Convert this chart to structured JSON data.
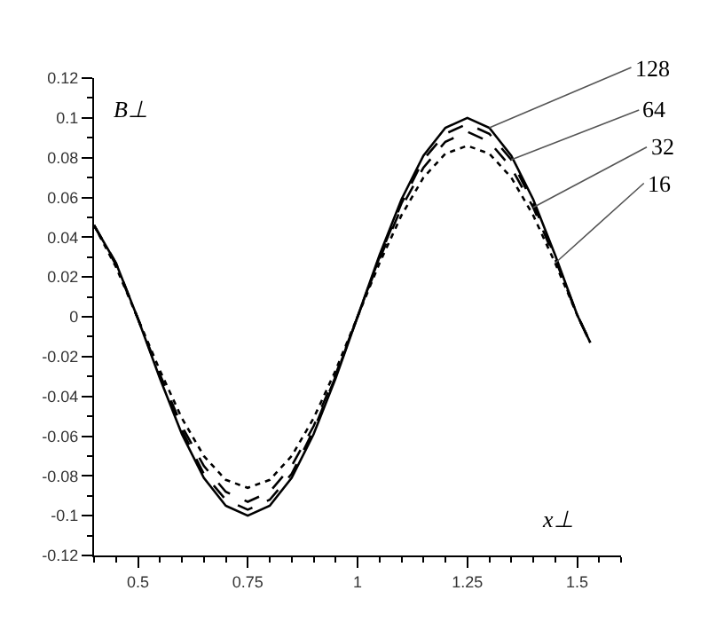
{
  "chart_data": {
    "type": "line",
    "xlabel": "x⊥",
    "ylabel": "B⊥",
    "x": [
      0.4,
      0.45,
      0.5,
      0.55,
      0.6,
      0.65,
      0.7,
      0.75,
      0.8,
      0.85,
      0.9,
      0.95,
      1.0,
      1.05,
      1.1,
      1.15,
      1.2,
      1.25,
      1.3,
      1.35,
      1.4,
      1.45,
      1.5,
      1.53
    ],
    "series": [
      {
        "name": "128",
        "color": "#000000",
        "line_style": "solid",
        "values": [
          0.046,
          0.027,
          -0.001,
          -0.031,
          -0.059,
          -0.081,
          -0.095,
          -0.1,
          -0.095,
          -0.081,
          -0.059,
          -0.031,
          0,
          0.031,
          0.059,
          0.081,
          0.095,
          0.1,
          0.095,
          0.081,
          0.059,
          0.031,
          0.001,
          -0.013
        ]
      },
      {
        "name": "64",
        "color": "#000000",
        "line_style": "dashed",
        "values": [
          0.046,
          0.027,
          -0.001,
          -0.03,
          -0.057,
          -0.079,
          -0.092,
          -0.097,
          -0.092,
          -0.079,
          -0.057,
          -0.03,
          0,
          0.03,
          0.057,
          0.079,
          0.092,
          0.097,
          0.092,
          0.079,
          0.057,
          0.03,
          0.001,
          -0.013
        ]
      },
      {
        "name": "32",
        "color": "#000000",
        "line_style": "dashed",
        "values": [
          0.046,
          0.026,
          -0.001,
          -0.029,
          -0.055,
          -0.075,
          -0.088,
          -0.093,
          -0.088,
          -0.075,
          -0.055,
          -0.029,
          0,
          0.029,
          0.055,
          0.075,
          0.088,
          0.093,
          0.088,
          0.075,
          0.055,
          0.029,
          0.001,
          -0.013
        ]
      },
      {
        "name": "16",
        "color": "#000000",
        "line_style": "dotted",
        "values": [
          0.046,
          0.025,
          -0.001,
          -0.027,
          -0.051,
          -0.07,
          -0.082,
          -0.086,
          -0.082,
          -0.07,
          -0.051,
          -0.027,
          0,
          0.027,
          0.051,
          0.07,
          0.082,
          0.086,
          0.082,
          0.07,
          0.051,
          0.027,
          0.001,
          -0.013
        ]
      }
    ],
    "xlim": [
      0.4,
      1.6
    ],
    "xticks": [
      0.5,
      0.75,
      1,
      1.25,
      1.5
    ],
    "ylim": [
      -0.12,
      0.12
    ],
    "yticks": [
      -0.12,
      -0.1,
      -0.08,
      -0.06,
      -0.04,
      -0.02,
      0,
      0.02,
      0.04,
      0.06,
      0.08,
      0.1,
      0.12
    ],
    "grid": false,
    "legend": false,
    "marker": "none"
  }
}
